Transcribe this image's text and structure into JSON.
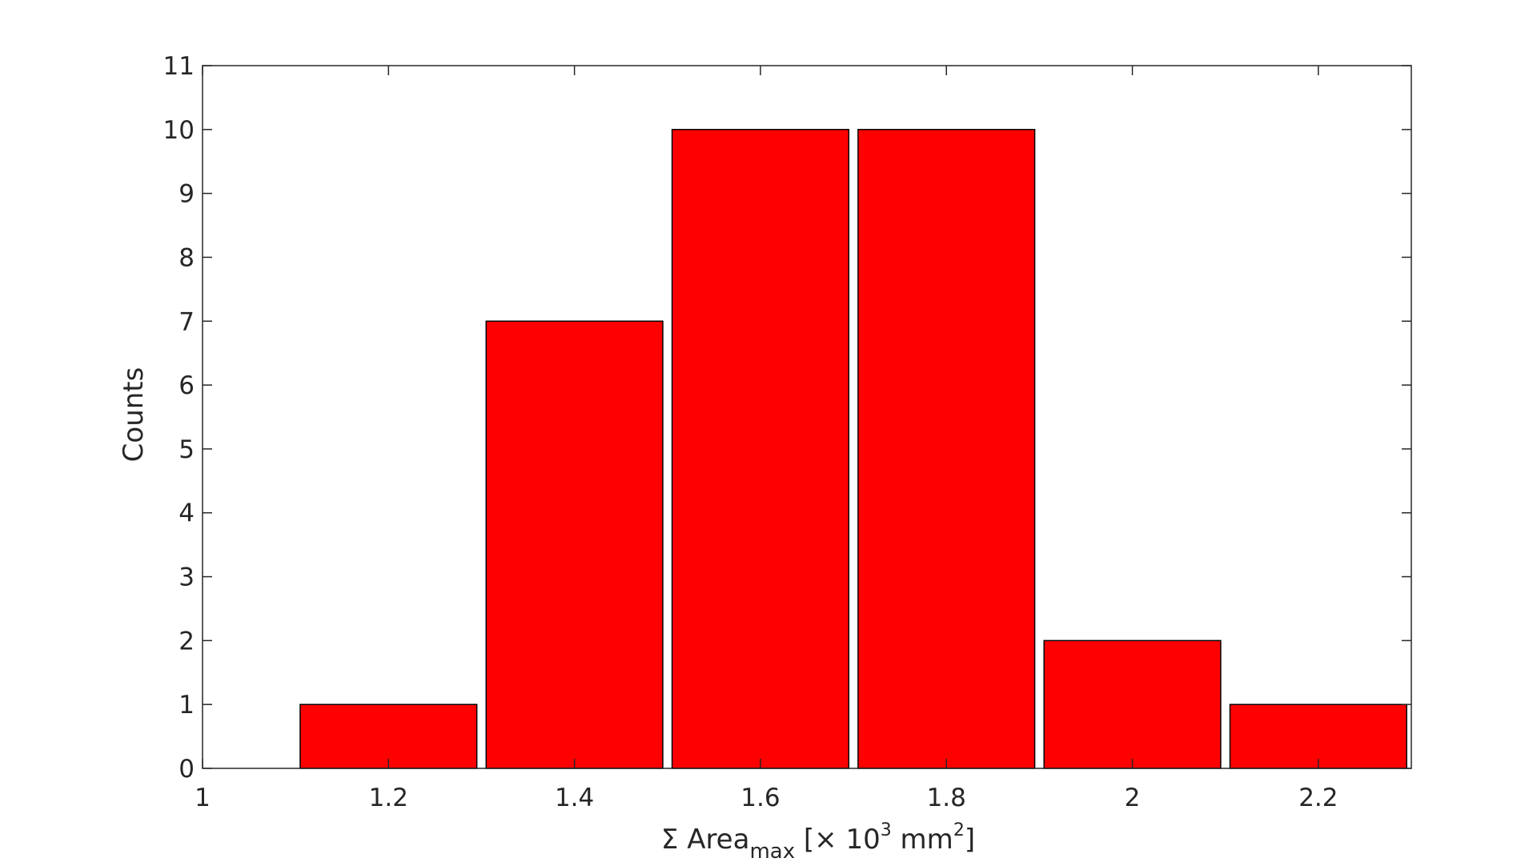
{
  "chart_data": {
    "type": "bar",
    "title": "",
    "xlabel": {
      "prefix": "Σ Area",
      "subscript": "max",
      "middle": " [× 10",
      "superscript1": "3",
      "unit": " mm",
      "superscript2": "2",
      "suffix": "]"
    },
    "ylabel": "Counts",
    "x_bins": [
      1.2,
      1.4,
      1.6,
      1.8,
      2.0,
      2.2
    ],
    "values": [
      1,
      7,
      10,
      10,
      2,
      1
    ],
    "bin_width": 0.19,
    "xlim": [
      1.0,
      2.3
    ],
    "ylim": [
      0,
      11
    ],
    "x_ticks": [
      {
        "value": 1.0,
        "label": "1"
      },
      {
        "value": 1.2,
        "label": "1.2"
      },
      {
        "value": 1.4,
        "label": "1.4"
      },
      {
        "value": 1.6,
        "label": "1.6"
      },
      {
        "value": 1.8,
        "label": "1.8"
      },
      {
        "value": 2.0,
        "label": "2"
      },
      {
        "value": 2.2,
        "label": "2.2"
      }
    ],
    "y_ticks": [
      {
        "value": 0,
        "label": "0"
      },
      {
        "value": 1,
        "label": "1"
      },
      {
        "value": 2,
        "label": "2"
      },
      {
        "value": 3,
        "label": "3"
      },
      {
        "value": 4,
        "label": "4"
      },
      {
        "value": 5,
        "label": "5"
      },
      {
        "value": 6,
        "label": "6"
      },
      {
        "value": 7,
        "label": "7"
      },
      {
        "value": 8,
        "label": "8"
      },
      {
        "value": 9,
        "label": "9"
      },
      {
        "value": 10,
        "label": "10"
      },
      {
        "value": 11,
        "label": "11"
      }
    ],
    "bar_color": "#ff0000",
    "bar_edge_color": "#000000",
    "axis_color": "#262626",
    "grid": false,
    "legend": "none"
  }
}
